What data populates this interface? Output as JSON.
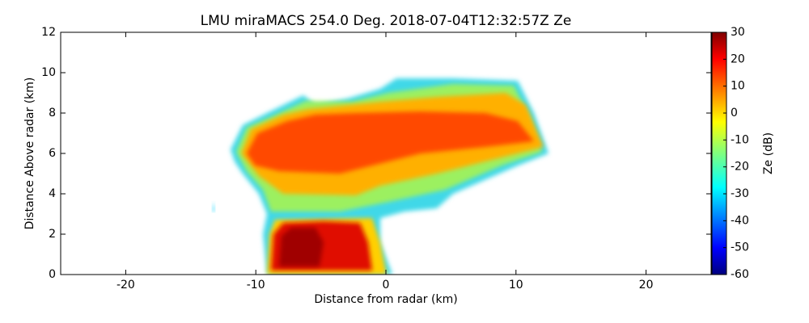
{
  "chart_data": {
    "type": "heatmap",
    "title": "LMU miraMACS 254.0 Deg. 2018-07-04T12:32:57Z  Ze",
    "x_label": "Distance from radar (km)",
    "y_label": "Distance Above radar  (km)",
    "xlim": [
      -25,
      25
    ],
    "xticks": [
      -20,
      -10,
      0,
      10,
      20
    ],
    "ylim": [
      0,
      12
    ],
    "yticks": [
      0,
      2,
      4,
      6,
      8,
      10,
      12
    ],
    "colorbar": {
      "label": "Ze (dB)",
      "colormap": "jet",
      "lim": [
        -60,
        30
      ],
      "ticks": [
        -60,
        -50,
        -40,
        -30,
        -20,
        -10,
        0,
        10,
        20,
        30
      ]
    }
  }
}
